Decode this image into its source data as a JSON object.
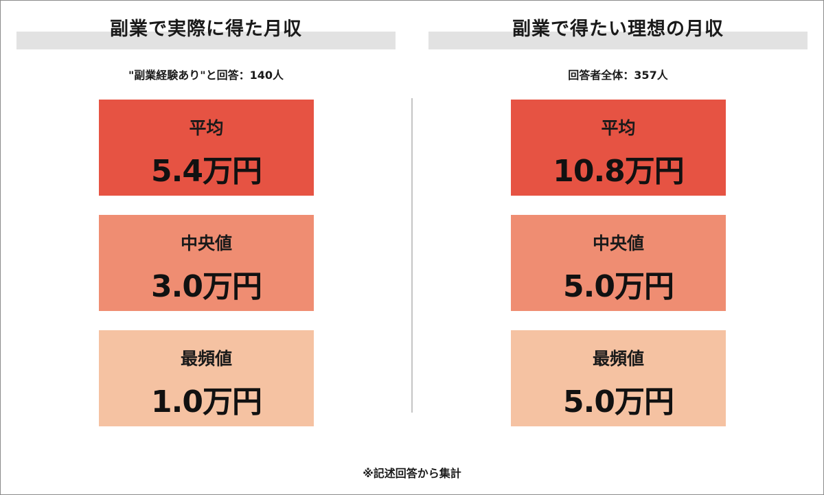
{
  "chart_data": [
    {
      "type": "table",
      "title": "副業で実際に得た月収",
      "subtitle": "\"副業経験あり\"と回答：140人",
      "categories": [
        "平均",
        "中央値",
        "最頻値"
      ],
      "values": [
        5.4,
        3.0,
        1.0
      ],
      "value_labels": [
        "5.4万円",
        "3.0万円",
        "1.0万円"
      ],
      "unit": "万円",
      "colors": [
        "#e65343",
        "#ef8d72",
        "#f5c2a2"
      ]
    },
    {
      "type": "table",
      "title": "副業で得たい理想の月収",
      "subtitle": "回答者全体：357人",
      "categories": [
        "平均",
        "中央値",
        "最頻値"
      ],
      "values": [
        10.8,
        5.0,
        5.0
      ],
      "value_labels": [
        "10.8万円",
        "5.0万円",
        "5.0万円"
      ],
      "unit": "万円",
      "colors": [
        "#e65343",
        "#ef8d72",
        "#f5c2a2"
      ]
    }
  ],
  "footnote": "※記述回答から集計"
}
